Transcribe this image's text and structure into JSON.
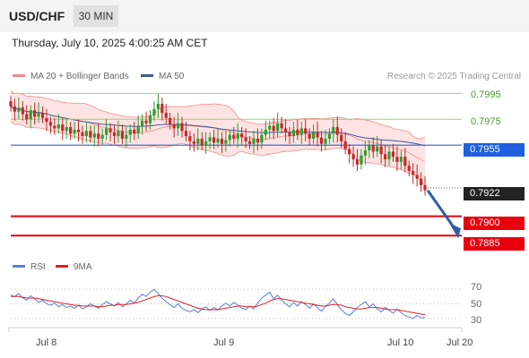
{
  "header": {
    "symbol": "USD/CHF",
    "timeframe": "30 MIN"
  },
  "datetime": "Thursday, July 10, 2025 4:00:25 AM CET",
  "legend": {
    "bollinger": "MA 20 + Bollinger Bands",
    "ma50": "MA 50",
    "credit": "Research © 2025 Trading Central",
    "rsi": "RSI",
    "rsi_ma": "9MA"
  },
  "colors": {
    "candle_up": "#2e9e2e",
    "candle_down": "#c62828",
    "bollinger": "#f48a8a",
    "bollinger_fill": "#fde3e3",
    "ma50": "#3d5a98",
    "pivot_line": "#2a63c9",
    "pivot_tag": "#1f5fe0",
    "support": "#e8000f",
    "resistance": "#9bd07a",
    "current_tag": "#222222",
    "arrow": "#2d5fa8",
    "rsi": "#5b7fd6",
    "rsi_ma": "#e02020"
  },
  "chart_data": {
    "type": "candlestick",
    "instrument": "USD/CHF",
    "interval": "30 MIN",
    "x_ticks": [
      "Jul 8",
      "Jul 9",
      "Jul 10",
      "Jul 20"
    ],
    "price_levels": {
      "resistance": [
        0.7995,
        0.7975
      ],
      "pivot": 0.7955,
      "current": 0.7922,
      "support": [
        0.79,
        0.7885
      ]
    },
    "level_labels": {
      "r2": "0.7995",
      "r1": "0.7975",
      "pivot": "0.7955",
      "current": "0.7922",
      "s1": "0.7900",
      "s2": "0.7885"
    },
    "ylim": [
      0.7872,
      0.8005
    ],
    "closes": [
      0.7985,
      0.7981,
      0.7984,
      0.7979,
      0.7975,
      0.7982,
      0.7977,
      0.798,
      0.7976,
      0.7973,
      0.797,
      0.7968,
      0.7971,
      0.7966,
      0.7969,
      0.7964,
      0.7967,
      0.7965,
      0.7962,
      0.7966,
      0.7961,
      0.7964,
      0.796,
      0.7963,
      0.7968,
      0.7965,
      0.7962,
      0.7966,
      0.796,
      0.7963,
      0.7967,
      0.7964,
      0.797,
      0.7974,
      0.7972,
      0.7978,
      0.7983,
      0.7987,
      0.798,
      0.7976,
      0.7971,
      0.7968,
      0.7972,
      0.7966,
      0.7962,
      0.7958,
      0.7956,
      0.796,
      0.7955,
      0.7958,
      0.7961,
      0.7957,
      0.796,
      0.7956,
      0.7959,
      0.7963,
      0.796,
      0.7964,
      0.7961,
      0.7958,
      0.7956,
      0.796,
      0.7957,
      0.7963,
      0.7967,
      0.797,
      0.7966,
      0.7972,
      0.7968,
      0.7965,
      0.7962,
      0.7967,
      0.7963,
      0.7968,
      0.7964,
      0.796,
      0.7965,
      0.7961,
      0.7956,
      0.796,
      0.7964,
      0.7969,
      0.7963,
      0.7958,
      0.7952,
      0.7948,
      0.7944,
      0.794,
      0.7947,
      0.7951,
      0.7955,
      0.795,
      0.7954,
      0.7948,
      0.7944,
      0.795,
      0.7946,
      0.7942,
      0.7946,
      0.7939,
      0.7935,
      0.7932,
      0.7929,
      0.7924,
      0.792
    ],
    "rsi": {
      "levels": [
        70,
        50,
        30
      ],
      "ylim": [
        20,
        80
      ],
      "rsi_values": [
        62,
        60,
        64,
        58,
        55,
        61,
        57,
        52,
        55,
        50,
        48,
        51,
        46,
        49,
        45,
        47,
        44,
        48,
        43,
        46,
        50,
        47,
        44,
        49,
        53,
        50,
        47,
        52,
        46,
        50,
        55,
        51,
        58,
        63,
        60,
        66,
        70,
        64,
        58,
        53,
        49,
        45,
        50,
        44,
        41,
        39,
        42,
        38,
        43,
        46,
        41,
        45,
        42,
        47,
        51,
        47,
        52,
        48,
        44,
        42,
        47,
        43,
        51,
        58,
        62,
        66,
        57,
        62,
        55,
        50,
        46,
        52,
        47,
        53,
        49,
        44,
        50,
        45,
        40,
        46,
        51,
        57,
        49,
        42,
        37,
        34,
        39,
        45,
        49,
        53,
        46,
        50,
        43,
        39,
        45,
        41,
        37,
        43,
        38,
        34,
        32,
        30,
        34,
        31,
        31
      ],
      "ma_values": [
        60,
        60,
        60,
        59,
        58,
        58,
        58,
        57,
        56,
        55,
        54,
        53,
        52,
        51,
        50,
        49,
        48,
        48,
        47,
        47,
        47,
        47,
        46,
        46,
        47,
        48,
        48,
        49,
        49,
        49,
        50,
        51,
        52,
        54,
        56,
        58,
        60,
        61,
        61,
        60,
        58,
        56,
        54,
        52,
        50,
        48,
        46,
        44,
        43,
        42,
        42,
        42,
        42,
        43,
        44,
        45,
        46,
        47,
        47,
        46,
        46,
        46,
        47,
        49,
        51,
        54,
        56,
        57,
        57,
        56,
        55,
        54,
        53,
        52,
        51,
        50,
        49,
        48,
        47,
        47,
        48,
        49,
        49,
        48,
        46,
        45,
        44,
        43,
        43,
        44,
        45,
        45,
        45,
        44,
        43,
        42,
        42,
        42,
        41,
        40,
        39,
        38,
        37,
        36,
        35
      ]
    },
    "forecast_arrow": {
      "from": 0.792,
      "to": 0.7885
    }
  }
}
